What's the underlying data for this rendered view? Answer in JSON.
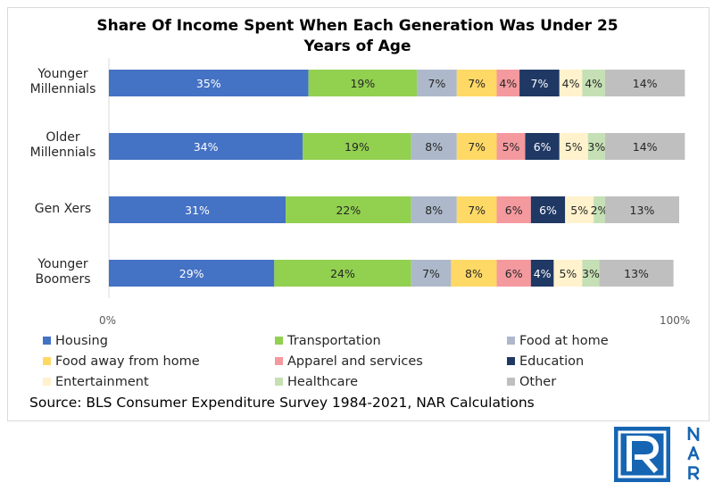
{
  "chart_data": {
    "type": "bar",
    "orientation": "horizontal",
    "stacked": true,
    "title_lines": [
      "Share Of Income Spent When Each Generation Was Under 25",
      "Years of Age"
    ],
    "categories": [
      [
        "Younger",
        "Millennials"
      ],
      [
        "Older",
        "Millennials"
      ],
      [
        "Gen Xers"
      ],
      [
        "Younger",
        "Boomers"
      ]
    ],
    "xlim": [
      0,
      100
    ],
    "x_ticks": [
      "0%",
      "100%"
    ],
    "grid": false,
    "legend_position": "bottom",
    "series": [
      {
        "name": "Housing",
        "color": "#4472c4",
        "label_color": "#ffffff",
        "values": [
          35,
          34,
          31,
          29
        ],
        "labels": [
          "35%",
          "34%",
          "31%",
          "29%"
        ]
      },
      {
        "name": "Transportation",
        "color": "#92d050",
        "label_color": "#262626",
        "values": [
          19,
          19,
          22,
          24
        ],
        "labels": [
          "19%",
          "19%",
          "22%",
          "24%"
        ]
      },
      {
        "name": "Food at home",
        "color": "#adb9ca",
        "label_color": "#262626",
        "values": [
          7,
          8,
          8,
          7
        ],
        "labels": [
          "7%",
          "8%",
          "8%",
          "7%"
        ]
      },
      {
        "name": "Food away from home",
        "color": "#ffd966",
        "label_color": "#262626",
        "values": [
          7,
          7,
          7,
          8
        ],
        "labels": [
          "7%",
          "7%",
          "7%",
          "8%"
        ]
      },
      {
        "name": "Apparel and services",
        "color": "#f4999e",
        "label_color": "#262626",
        "values": [
          4,
          5,
          6,
          6
        ],
        "labels": [
          "4%",
          "5%",
          "6%",
          "6%"
        ]
      },
      {
        "name": "Education",
        "color": "#1f3864",
        "label_color": "#ffffff",
        "values": [
          7,
          6,
          6,
          4
        ],
        "labels": [
          "7%",
          "6%",
          "6%",
          "4%"
        ]
      },
      {
        "name": "Entertainment",
        "color": "#fff2cc",
        "label_color": "#262626",
        "values": [
          4,
          5,
          5,
          5
        ],
        "labels": [
          "4%",
          "5%",
          "5%",
          "5%"
        ]
      },
      {
        "name": "Healthcare",
        "color": "#c5e0b4",
        "label_color": "#262626",
        "values": [
          4,
          3,
          2,
          3
        ],
        "labels": [
          "4%",
          "3%",
          "2%",
          "3%"
        ]
      },
      {
        "name": "Other",
        "color": "#bfbfbf",
        "label_color": "#262626",
        "values": [
          14,
          14,
          13,
          13
        ],
        "labels": [
          "14%",
          "14%",
          "13%",
          "13%"
        ]
      }
    ]
  },
  "source": "Source: BLS Consumer Expenditure Survey 1984-2021, NAR Calculations",
  "logo": {
    "box_letter": "R",
    "letters": [
      "N",
      "A",
      "R"
    ],
    "color": "#1665b3"
  }
}
